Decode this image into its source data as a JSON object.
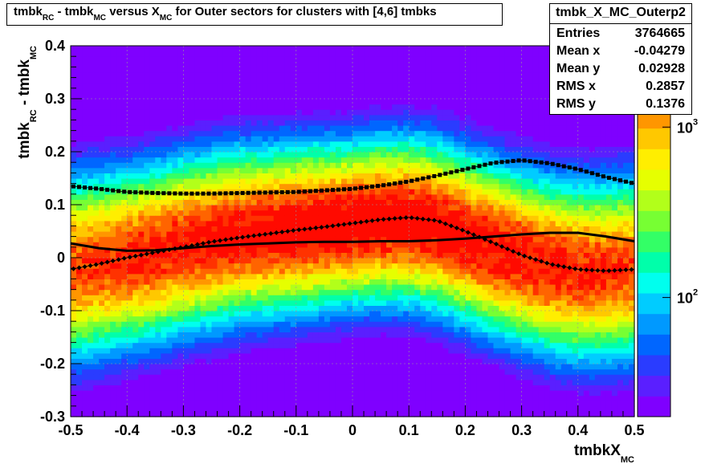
{
  "title": {
    "parts": [
      "tmbk",
      "RC",
      " - tmbk",
      "MC",
      " versus X",
      "MC",
      " for Outer sectors for clusters with [4,6] tmbks"
    ]
  },
  "stats": {
    "name": "tmbk_X_MC_Outerp2",
    "rows": [
      {
        "label": "Entries",
        "value": "3764665"
      },
      {
        "label": "Mean x",
        "value": "-0.04279"
      },
      {
        "label": "Mean y",
        "value": "0.02928"
      },
      {
        "label": "RMS x",
        "value": "0.2857"
      },
      {
        "label": "RMS y",
        "value": "0.1376"
      }
    ]
  },
  "axes": {
    "xlabel_main": "tmbkX",
    "xlabel_sub": "MC",
    "ylabel_parts": [
      "tmbk",
      "RC",
      " - tmbk",
      "MC"
    ],
    "x_ticks": [
      "-0.5",
      "-0.4",
      "-0.3",
      "-0.2",
      "-0.1",
      "0",
      "0.1",
      "0.2",
      "0.3",
      "0.4",
      "0.5"
    ],
    "y_ticks": [
      "-0.3",
      "-0.2",
      "-0.1",
      "0",
      "0.1",
      "0.2",
      "0.3",
      "0.4"
    ],
    "z_labels": [
      {
        "base": "10",
        "exp": "2"
      },
      {
        "base": "10",
        "exp": "3"
      }
    ]
  },
  "colors": {
    "palette": [
      "#7f00ff",
      "#5a1fff",
      "#2a3cff",
      "#0066ff",
      "#0099ff",
      "#00ccff",
      "#00ffee",
      "#00ffaa",
      "#33ff66",
      "#77ff33",
      "#b2ff1a",
      "#e6ff00",
      "#ffee00",
      "#ffc800",
      "#ff9600",
      "#ff6400",
      "#ff3200",
      "#ff0a00"
    ],
    "mean_curve": "#000000"
  },
  "chart_data": {
    "type": "heatmap",
    "title": "tmbk_RC - tmbk_MC versus X_MC for Outer sectors for clusters with [4,6] tmbks",
    "xlabel": "tmbkX_MC",
    "ylabel": "tmbk_RC - tmbk_MC",
    "xlim": [
      -0.5,
      0.5
    ],
    "ylim": [
      -0.3,
      0.4
    ],
    "z_scale": "log",
    "z_range": [
      20,
      3000
    ],
    "grid": true,
    "ridge": {
      "x": [
        -0.5,
        -0.45,
        -0.4,
        -0.35,
        -0.3,
        -0.25,
        -0.2,
        -0.15,
        -0.1,
        -0.05,
        0.0,
        0.05,
        0.1,
        0.15,
        0.2,
        0.25,
        0.3,
        0.35,
        0.4,
        0.45,
        0.5
      ],
      "y": [
        -0.02,
        -0.01,
        0.0,
        0.01,
        0.025,
        0.035,
        0.045,
        0.05,
        0.055,
        0.06,
        0.065,
        0.07,
        0.07,
        0.06,
        0.04,
        0.02,
        0.0,
        -0.015,
        -0.025,
        -0.025,
        -0.02
      ]
    },
    "series": [
      {
        "name": "Mean profile",
        "x": [
          -0.5,
          -0.45,
          -0.4,
          -0.35,
          -0.3,
          -0.25,
          -0.2,
          -0.15,
          -0.1,
          -0.05,
          0.0,
          0.05,
          0.1,
          0.15,
          0.2,
          0.25,
          0.3,
          0.35,
          0.4,
          0.45,
          0.5
        ],
        "y": [
          0.027,
          0.018,
          0.013,
          0.014,
          0.018,
          0.022,
          0.025,
          0.027,
          0.029,
          0.03,
          0.03,
          0.031,
          0.031,
          0.033,
          0.036,
          0.04,
          0.044,
          0.047,
          0.047,
          0.04,
          0.031
        ]
      },
      {
        "name": "Lower profile",
        "x": [
          -0.5,
          -0.45,
          -0.4,
          -0.35,
          -0.3,
          -0.25,
          -0.2,
          -0.15,
          -0.1,
          -0.05,
          0.0,
          0.05,
          0.1,
          0.15,
          0.2,
          0.25,
          0.3,
          0.35,
          0.4,
          0.45,
          0.5
        ],
        "y": [
          -0.022,
          -0.012,
          0.0,
          0.01,
          0.02,
          0.03,
          0.038,
          0.045,
          0.052,
          0.058,
          0.065,
          0.072,
          0.076,
          0.07,
          0.05,
          0.028,
          0.005,
          -0.012,
          -0.022,
          -0.025,
          -0.022
        ]
      },
      {
        "name": "Upper profile",
        "x": [
          -0.5,
          -0.45,
          -0.4,
          -0.35,
          -0.3,
          -0.25,
          -0.2,
          -0.15,
          -0.1,
          -0.05,
          0.0,
          0.05,
          0.1,
          0.15,
          0.2,
          0.25,
          0.3,
          0.35,
          0.4,
          0.45,
          0.5
        ],
        "y": [
          0.135,
          0.13,
          0.124,
          0.122,
          0.121,
          0.121,
          0.122,
          0.123,
          0.124,
          0.127,
          0.13,
          0.136,
          0.144,
          0.155,
          0.167,
          0.179,
          0.184,
          0.178,
          0.167,
          0.152,
          0.14
        ]
      }
    ]
  }
}
